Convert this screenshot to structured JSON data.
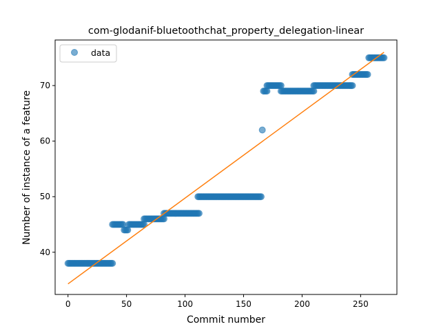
{
  "chart_data": {
    "type": "scatter",
    "title": "com-glodanif-bluetoothchat_property_delegation-linear",
    "xlabel": "Commit number",
    "ylabel": "Number of instance of a feature",
    "xlim": [
      -11,
      281
    ],
    "ylim": [
      32.4,
      78.2
    ],
    "x_ticks": [
      0,
      50,
      100,
      150,
      200,
      250
    ],
    "y_ticks": [
      40,
      50,
      60,
      70
    ],
    "legend": {
      "placement": "top-left",
      "entries": [
        "data"
      ]
    },
    "grid": false,
    "colors": {
      "data": "#1f77b4",
      "fit": "#ff7f0e"
    },
    "series": [
      {
        "name": "data",
        "kind": "points",
        "segments": [
          {
            "x_start": 0,
            "x_end": 38,
            "y": 38
          },
          {
            "x_start": 38,
            "x_end": 47,
            "y": 45
          },
          {
            "x_start": 48,
            "x_end": 51,
            "y": 44
          },
          {
            "x_start": 52,
            "x_end": 65,
            "y": 45
          },
          {
            "x_start": 65,
            "x_end": 82,
            "y": 46
          },
          {
            "x_start": 82,
            "x_end": 112,
            "y": 47
          },
          {
            "x_start": 111,
            "x_end": 165,
            "y": 50
          },
          {
            "x_start": 166,
            "x_end": 166,
            "y": 62
          },
          {
            "x_start": 167,
            "x_end": 170,
            "y": 69
          },
          {
            "x_start": 170,
            "x_end": 182,
            "y": 70
          },
          {
            "x_start": 182,
            "x_end": 210,
            "y": 69
          },
          {
            "x_start": 210,
            "x_end": 243,
            "y": 70
          },
          {
            "x_start": 243,
            "x_end": 256,
            "y": 72
          },
          {
            "x_start": 257,
            "x_end": 270,
            "y": 75
          }
        ]
      },
      {
        "kind": "line",
        "x": [
          0,
          270
        ],
        "y": [
          34.3,
          76.0
        ]
      }
    ]
  }
}
